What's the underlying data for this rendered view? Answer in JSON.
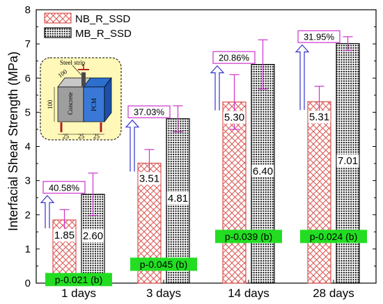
{
  "chart_data": {
    "type": "bar",
    "ylabel": "Interfacial Shear Strength (MPa)",
    "ylim": [
      0,
      8
    ],
    "yticks": [
      0,
      1,
      2,
      3,
      4,
      5,
      6,
      7,
      8
    ],
    "categories": [
      "1 days",
      "3 days",
      "14 days",
      "28 days"
    ],
    "series": [
      {
        "name": "NB_R_SSD",
        "values": [
          1.85,
          3.51,
          5.3,
          5.31
        ],
        "errors": [
          0.3,
          0.4,
          0.8,
          0.45
        ],
        "value_labels": [
          "1.85",
          "3.51",
          "5.30",
          "5.31"
        ],
        "color": "#d9534f",
        "pattern": "crosshatch"
      },
      {
        "name": "MB_R_SSD",
        "values": [
          2.6,
          4.81,
          6.4,
          7.01
        ],
        "errors": [
          0.62,
          0.38,
          0.72,
          0.2
        ],
        "value_labels": [
          "2.60",
          "4.81",
          "6.40",
          "7.01"
        ],
        "color": "#000000",
        "pattern": "dots"
      }
    ],
    "increase_labels": [
      "40.58%",
      "37.03%",
      "20.86%",
      "31.95%"
    ],
    "p_values": [
      "p-0.021 (b)",
      "p-0.045 (b)",
      "p-0.039 (b)",
      "p-0.024 (b)"
    ],
    "legend_position": "top-left",
    "grid": false,
    "colors": {
      "nb_stroke": "#d9534f",
      "mb_stroke": "#000000",
      "error_bar": "#cc33cc",
      "arrow": "#3333cc",
      "pct_box": "#cc33cc",
      "p_box": "#22dd22"
    }
  },
  "inset": {
    "strip_label": "Steel strip",
    "block_left": "Concrete",
    "block_right": "PCM",
    "dim_top": "100",
    "dim_side": "100",
    "dim_bottom": [
      "25",
      "25",
      "25"
    ]
  }
}
